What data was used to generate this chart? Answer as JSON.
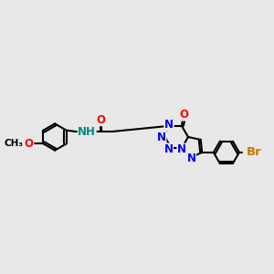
{
  "bg_color": "#e8e8e8",
  "bond_color": "#000000",
  "bond_width": 1.5,
  "atom_colors": {
    "N": "#0000ee",
    "O": "#ff0000",
    "Br": "#cc7700",
    "NH": "#008888"
  },
  "font_size": 8.5,
  "fig_size": [
    3.0,
    3.0
  ],
  "dpi": 100
}
